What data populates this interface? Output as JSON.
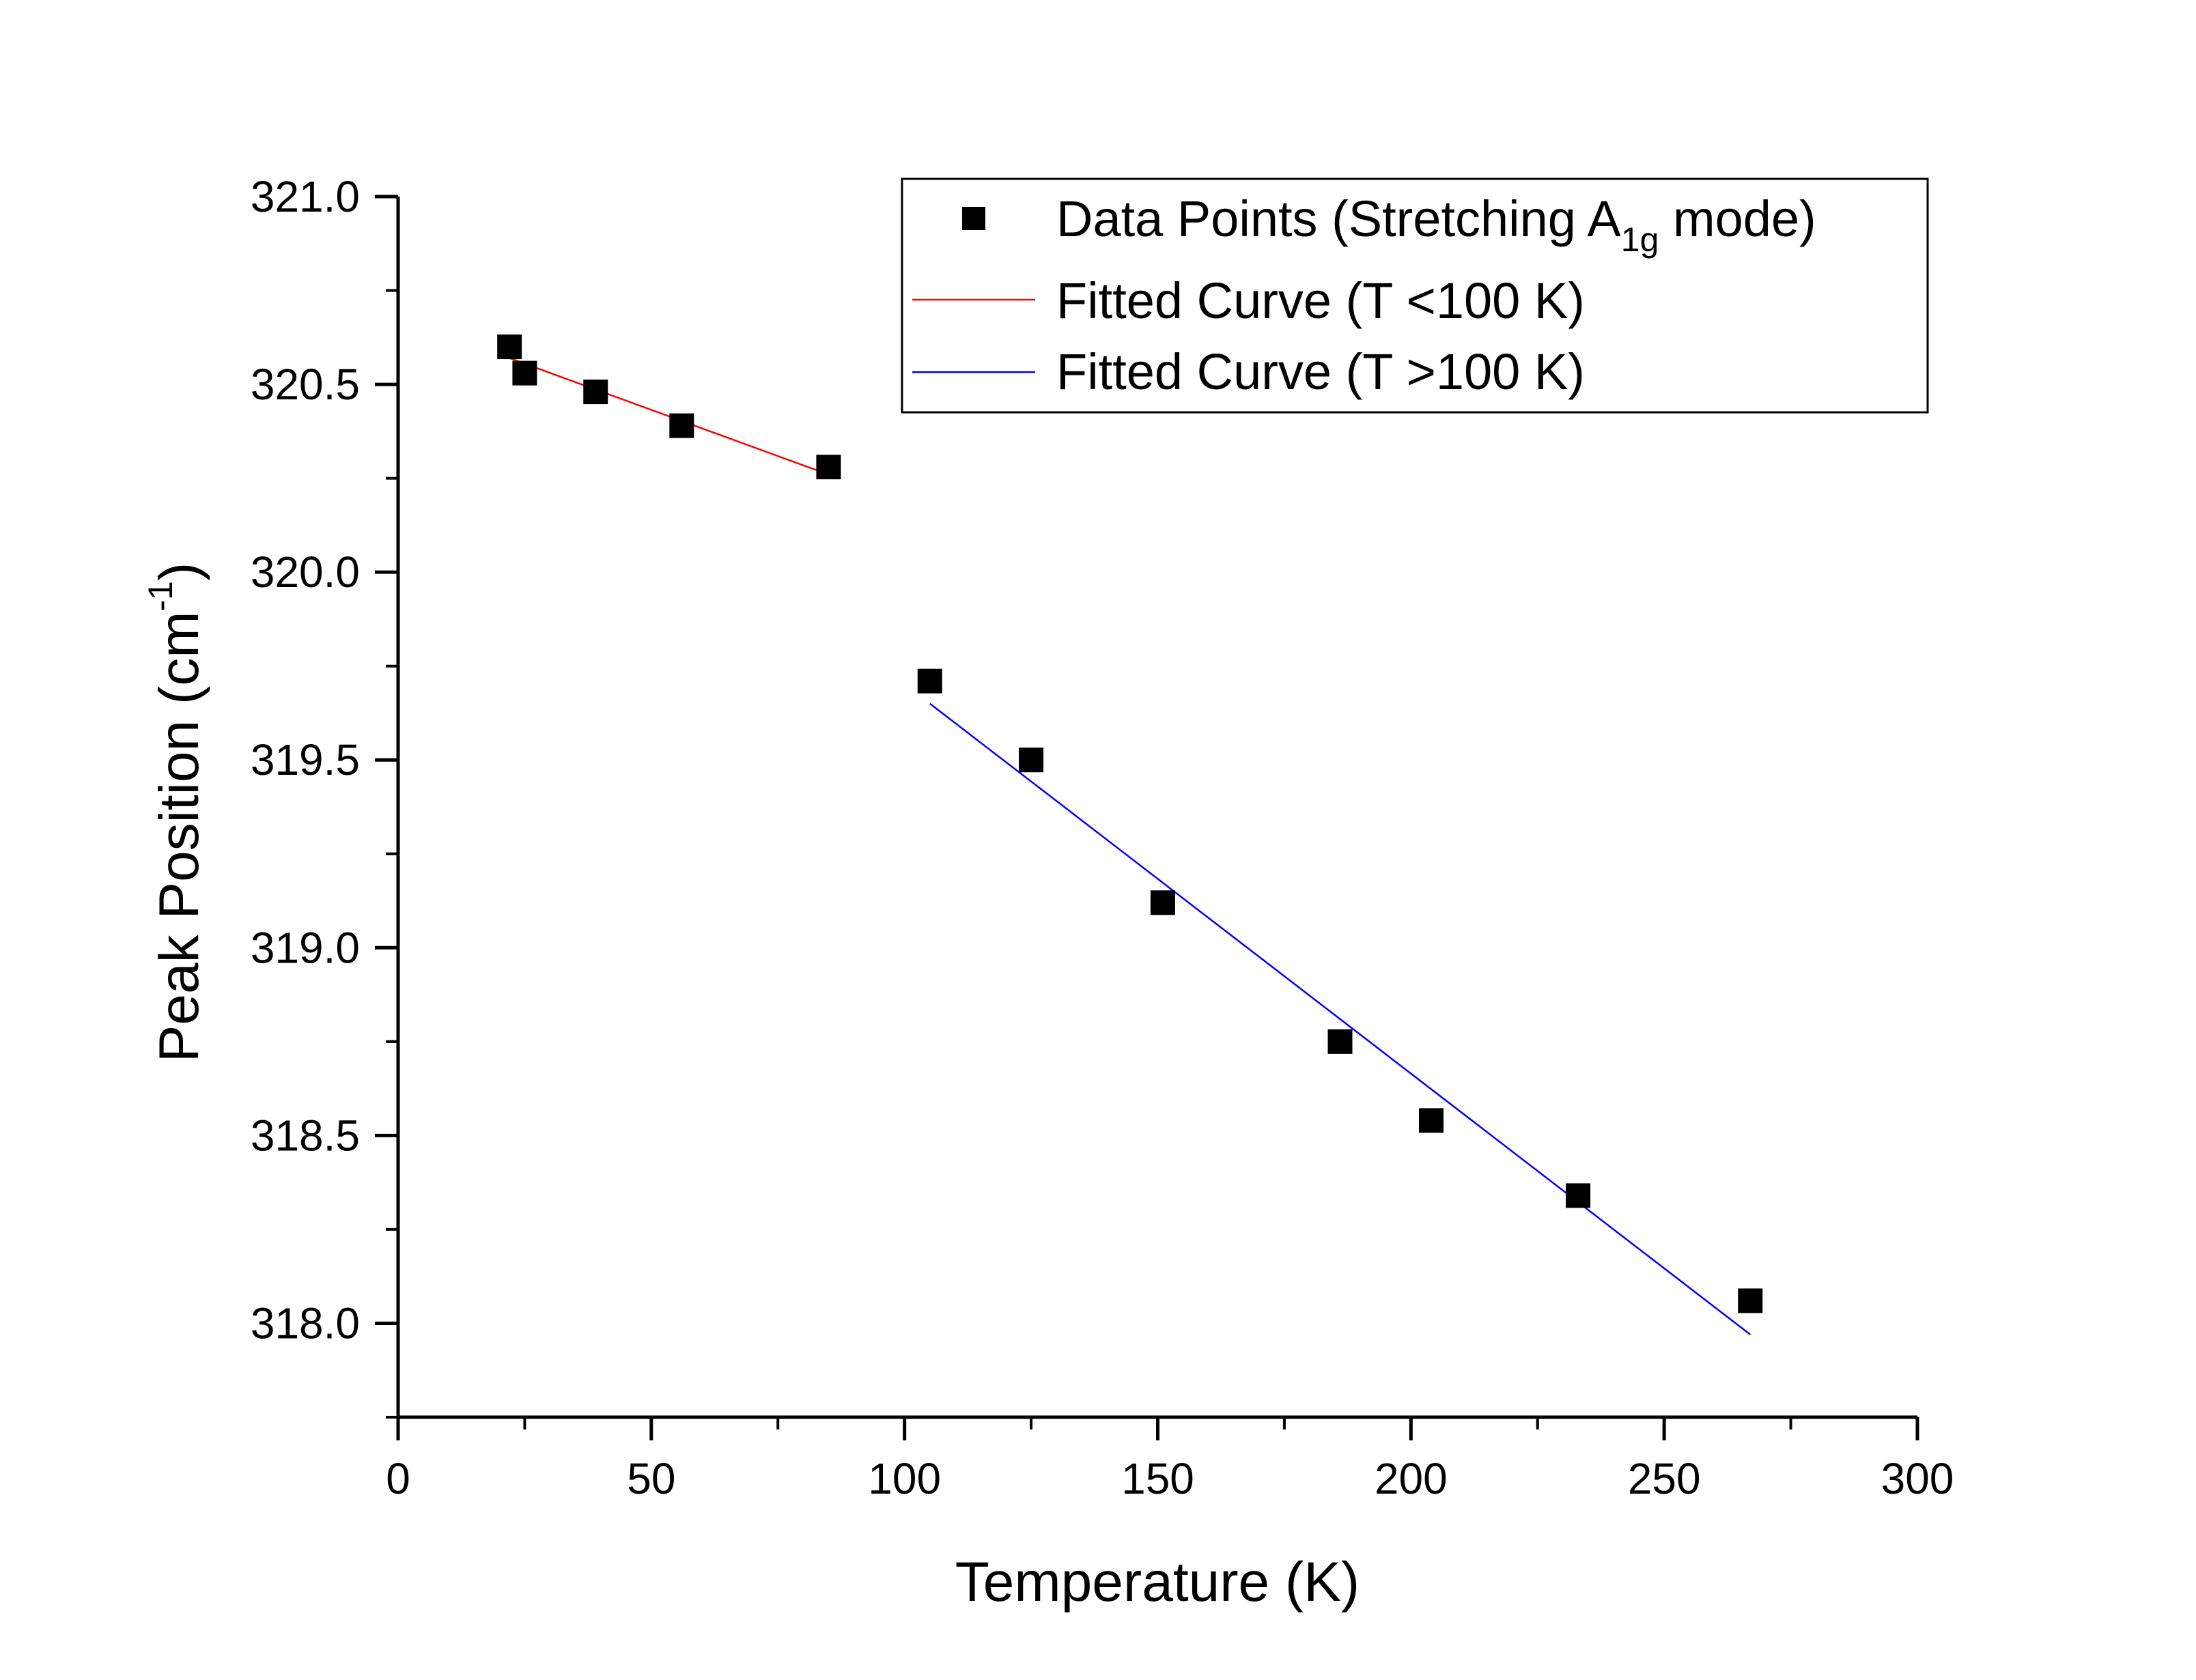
{
  "chart_data": {
    "type": "scatter",
    "title": "",
    "xlabel": "Temperature (K)",
    "ylabel_main": "Peak Position (cm",
    "ylabel_sup": "-1",
    "ylabel_close": ")",
    "xlim": [
      0,
      300
    ],
    "ylim": [
      317.75,
      321.0
    ],
    "grid": false,
    "legend_position": "top-right",
    "x_ticks": [
      0,
      50,
      100,
      150,
      200,
      250,
      300
    ],
    "x_tick_labels": [
      "0",
      "50",
      "100",
      "150",
      "200",
      "250",
      "300"
    ],
    "y_ticks": [
      318.0,
      318.5,
      319.0,
      319.5,
      320.0,
      320.5,
      321.0
    ],
    "y_tick_labels": [
      "318.0",
      "318.5",
      "319.0",
      "319.5",
      "320.0",
      "320.5",
      "321.0"
    ],
    "x_minor_step": 25,
    "y_minor_step": 0.25,
    "series": [
      {
        "name": "Data Points (Stretching A1g mode)",
        "kind": "scatter",
        "marker": "square",
        "color": "#000000",
        "points": [
          {
            "x": 22,
            "y": 320.6
          },
          {
            "x": 25,
            "y": 320.53
          },
          {
            "x": 39,
            "y": 320.48
          },
          {
            "x": 56,
            "y": 320.39
          },
          {
            "x": 85,
            "y": 320.28
          },
          {
            "x": 105,
            "y": 319.71
          },
          {
            "x": 125,
            "y": 319.5
          },
          {
            "x": 151,
            "y": 319.12
          },
          {
            "x": 186,
            "y": 318.75
          },
          {
            "x": 204,
            "y": 318.54
          },
          {
            "x": 233,
            "y": 318.34
          },
          {
            "x": 267,
            "y": 318.06
          }
        ]
      },
      {
        "name": "Fitted Curve (T <100 K)",
        "kind": "line",
        "color": "#ff0000",
        "points": [
          {
            "x": 22,
            "y": 320.57
          },
          {
            "x": 85,
            "y": 320.26
          }
        ]
      },
      {
        "name": "Fitted Curve (T >100 K)",
        "kind": "line",
        "color": "#0000ff",
        "points": [
          {
            "x": 105,
            "y": 319.65
          },
          {
            "x": 267,
            "y": 317.97
          }
        ]
      }
    ],
    "legend": {
      "entries": [
        {
          "text_main": "Data Points (Stretching A",
          "text_sub": "1g",
          "text_tail": " mode)",
          "kind": "marker",
          "color": "#000000"
        },
        {
          "text_main": "Fitted Curve (T <100 K)",
          "kind": "line",
          "color": "#ff0000"
        },
        {
          "text_main": "Fitted Curve (T >100 K)",
          "kind": "line",
          "color": "#0000ff"
        }
      ]
    }
  }
}
